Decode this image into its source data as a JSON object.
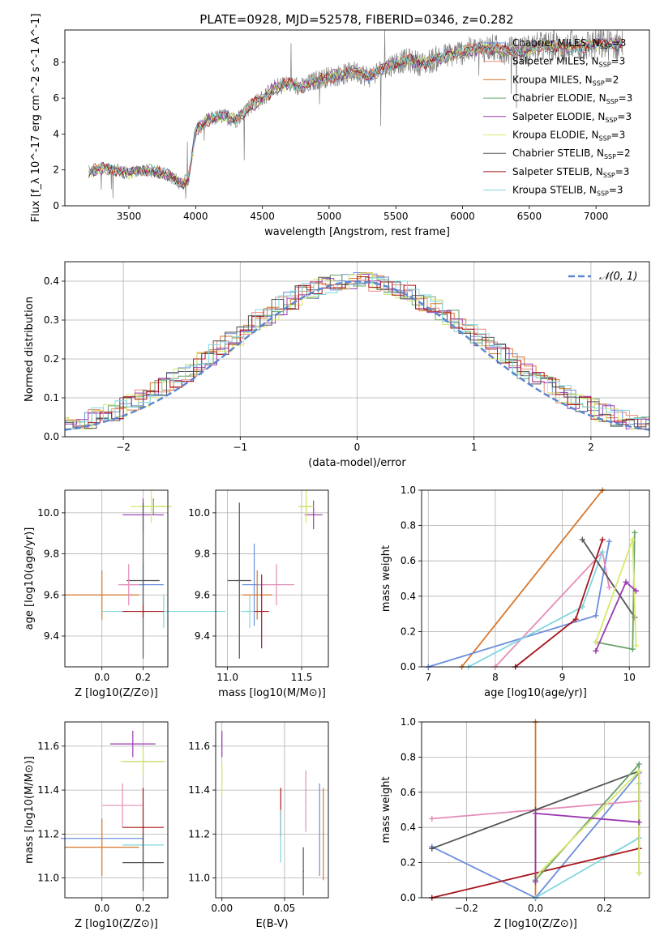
{
  "figure": {
    "title": "PLATE=0928, MJD=52578, FIBERID=0346, z=0.282"
  },
  "colors": {
    "Chabrier MILES": "#6b8fdc",
    "Salpeter MILES": "#e98a7a",
    "Kroupa MILES": "#d9762a",
    "Chabrier ELODIE": "#6aa36a",
    "Salpeter ELODIE": "#9a39b0",
    "Kroupa ELODIE": "#d9e86a",
    "Chabrier STELIB": "#555555",
    "Salpeter STELIB": "#a8161c",
    "Kroupa STELIB": "#7fd6e0",
    "data": "#808080",
    "pink": "#e58db8",
    "gauss": "#5b86d1"
  },
  "chart_data": [
    {
      "id": "spectrum",
      "type": "line",
      "xlabel": "wavelength [Angstrom, rest frame]",
      "ylabel": "Flux [f_λ 10^-17 erg cm^-2 s^-1 A^-1]",
      "xlim": [
        3020,
        7400
      ],
      "ylim": [
        0,
        9.8
      ],
      "xticks": [
        3500,
        4000,
        4500,
        5000,
        5500,
        6000,
        6500,
        7000
      ],
      "yticks": [
        0,
        2,
        4,
        6,
        8
      ],
      "legend_position": "top-right",
      "legend": [
        {
          "label": "Chabrier MILES, N",
          "sub": "SSP",
          "suffix": "=3",
          "key": "Chabrier MILES"
        },
        {
          "label": "Salpeter MILES, N",
          "sub": "SSP",
          "suffix": "=3",
          "key": "Salpeter MILES"
        },
        {
          "label": "Kroupa MILES, N",
          "sub": "SSP",
          "suffix": "=2",
          "key": "Kroupa MILES"
        },
        {
          "label": "Chabrier ELODIE, N",
          "sub": "SSP",
          "suffix": "=3",
          "key": "Chabrier ELODIE"
        },
        {
          "label": "Salpeter ELODIE, N",
          "sub": "SSP",
          "suffix": "=3",
          "key": "Salpeter ELODIE"
        },
        {
          "label": "Kroupa ELODIE, N",
          "sub": "SSP",
          "suffix": "=3",
          "key": "Kroupa ELODIE"
        },
        {
          "label": "Chabrier STELIB, N",
          "sub": "SSP",
          "suffix": "=2",
          "key": "Chabrier STELIB"
        },
        {
          "label": "Salpeter STELIB, N",
          "sub": "SSP",
          "suffix": "=3",
          "key": "Salpeter STELIB"
        },
        {
          "label": "Kroupa STELIB, N",
          "sub": "SSP",
          "suffix": "=3",
          "key": "Kroupa STELIB"
        }
      ],
      "model_continuum": {
        "x": [
          3200,
          3300,
          3400,
          3500,
          3600,
          3700,
          3800,
          3900,
          3950,
          4000,
          4100,
          4200,
          4300,
          4400,
          4500,
          4600,
          4700,
          4800,
          4900,
          5000,
          5100,
          5200,
          5300,
          5400,
          5500,
          5600,
          5700,
          5800,
          5900,
          6000,
          6200,
          6400,
          6600,
          6800,
          7000,
          7200
        ],
        "y": [
          1.9,
          2.1,
          2.0,
          1.8,
          2.0,
          1.9,
          1.7,
          1.2,
          1.6,
          4.2,
          4.8,
          5.0,
          4.8,
          5.5,
          6.0,
          6.6,
          6.8,
          6.6,
          7.0,
          7.2,
          7.3,
          7.5,
          7.2,
          7.6,
          8.0,
          8.1,
          7.9,
          8.2,
          8.4,
          8.6,
          8.8,
          8.6,
          8.9,
          8.8,
          9.0,
          9.0
        ]
      }
    },
    {
      "id": "residuals",
      "type": "step",
      "xlabel": "(data-model)/error",
      "ylabel": "Normed distribution",
      "xlim": [
        -2.5,
        2.5
      ],
      "ylim": [
        0,
        0.45
      ],
      "xticks": [
        -2,
        -1,
        0,
        1,
        2
      ],
      "yticks": [
        0.0,
        0.1,
        0.2,
        0.3,
        0.4
      ],
      "grid": true,
      "legend_position": "top-right",
      "gauss_label": "𝒩(0, 1)"
    },
    {
      "id": "age-vs-Z",
      "type": "errorbar",
      "xlabel": "Z [log10(Z/Z⊙)]",
      "ylabel": "age [log10(age/yr)]",
      "xlim": [
        -0.18,
        0.32
      ],
      "ylim": [
        9.25,
        10.11
      ],
      "xticks": [
        0.0,
        0.2
      ],
      "yticks": [
        9.4,
        9.6,
        9.8,
        10.0
      ],
      "grid": true,
      "points": [
        {
          "key": "Chabrier MILES",
          "x": 0.2,
          "y": 9.65,
          "xerr": 0.1,
          "yerr": 0.1
        },
        {
          "key": "Kroupa MILES",
          "x": 0.0,
          "y": 9.6,
          "xerr": 0.18,
          "yerr": 0.12
        },
        {
          "key": "Salpeter ELODIE",
          "x": 0.2,
          "y": 9.99,
          "xerr": 0.1,
          "yerr": 0.08
        },
        {
          "key": "Chabrier ELODIE",
          "x": 0.25,
          "y": 10.03,
          "xerr": 0.06,
          "yerr": 0.04
        },
        {
          "key": "Kroupa ELODIE",
          "x": 0.24,
          "y": 10.03,
          "xerr": 0.1,
          "yerr": 0.08
        },
        {
          "key": "Chabrier STELIB",
          "x": 0.2,
          "y": 9.67,
          "xerr": 0.08,
          "yerr": 0.38
        },
        {
          "key": "Kroupa STELIB",
          "x": 0.3,
          "y": 9.52,
          "xerr": 0.3,
          "yerr": 0.08
        },
        {
          "key": "pink",
          "x": 0.13,
          "y": 9.65,
          "xerr": 0.05,
          "yerr": 0.1
        },
        {
          "key": "Salpeter STELIB",
          "x": 0.2,
          "y": 9.52,
          "xerr": 0.1,
          "yerr": 0.03
        }
      ]
    },
    {
      "id": "age-vs-mass",
      "type": "errorbar",
      "xlabel": "mass [log10(M/M⊙)]",
      "ylabel": "",
      "xlim": [
        10.92,
        11.68
      ],
      "ylim": [
        9.25,
        10.11
      ],
      "xticks": [
        11.0,
        11.5
      ],
      "yticks": [
        9.4,
        9.6,
        9.8,
        10.0
      ],
      "grid": true,
      "points": [
        {
          "key": "Chabrier MILES",
          "x": 11.18,
          "y": 9.65,
          "xerr": 0.08,
          "yerr": 0.2
        },
        {
          "key": "Kroupa MILES",
          "x": 11.2,
          "y": 9.6,
          "xerr": 0.1,
          "yerr": 0.12
        },
        {
          "key": "Salpeter ELODIE",
          "x": 11.58,
          "y": 9.99,
          "xerr": 0.06,
          "yerr": 0.07
        },
        {
          "key": "Chabrier ELODIE",
          "x": 11.53,
          "y": 10.03,
          "xerr": 0.05,
          "yerr": 0.04
        },
        {
          "key": "Kroupa ELODIE",
          "x": 11.53,
          "y": 10.03,
          "xerr": 0.05,
          "yerr": 0.08
        },
        {
          "key": "Chabrier STELIB",
          "x": 11.08,
          "y": 9.67,
          "xerr": 0.08,
          "yerr": 0.38
        },
        {
          "key": "Kroupa STELIB",
          "x": 11.15,
          "y": 9.52,
          "xerr": 0.06,
          "yerr": 0.08
        },
        {
          "key": "pink",
          "x": 11.33,
          "y": 9.65,
          "xerr": 0.12,
          "yerr": 0.1
        },
        {
          "key": "Salpeter STELIB",
          "x": 11.23,
          "y": 9.52,
          "xerr": 0.05,
          "yerr": 0.18
        }
      ]
    },
    {
      "id": "weight-vs-age",
      "type": "line",
      "xlabel": "age [log10(age/yr)]",
      "ylabel": "mass weight",
      "xlim": [
        6.9,
        10.3
      ],
      "ylim": [
        0,
        1.0
      ],
      "xticks": [
        7,
        8,
        9,
        10
      ],
      "yticks": [
        0.0,
        0.2,
        0.4,
        0.6,
        0.8,
        1.0
      ],
      "grid": true,
      "series": [
        {
          "key": "Kroupa MILES",
          "x": [
            7.5,
            9.6
          ],
          "y": [
            0.0,
            1.0
          ]
        },
        {
          "key": "Chabrier MILES",
          "x": [
            7.0,
            9.5,
            9.7
          ],
          "y": [
            0.0,
            0.29,
            0.71
          ]
        },
        {
          "key": "pink",
          "x": [
            8.0,
            9.6,
            9.7
          ],
          "y": [
            0.0,
            0.65,
            0.45
          ]
        },
        {
          "key": "Kroupa STELIB",
          "x": [
            7.6,
            9.3,
            9.6
          ],
          "y": [
            0.0,
            0.34,
            0.65
          ]
        },
        {
          "key": "Salpeter STELIB",
          "x": [
            8.3,
            9.2,
            9.6
          ],
          "y": [
            0.0,
            0.27,
            0.72
          ]
        },
        {
          "key": "Chabrier STELIB",
          "x": [
            9.3,
            10.08
          ],
          "y": [
            0.72,
            0.28
          ]
        },
        {
          "key": "Chabrier ELODIE",
          "x": [
            9.5,
            10.05,
            10.08
          ],
          "y": [
            0.14,
            0.1,
            0.76
          ]
        },
        {
          "key": "Kroupa ELODIE",
          "x": [
            9.5,
            10.05,
            10.1
          ],
          "y": [
            0.14,
            0.72,
            0.12
          ]
        },
        {
          "key": "Salpeter ELODIE",
          "x": [
            9.5,
            9.95,
            10.1
          ],
          "y": [
            0.09,
            0.48,
            0.43
          ]
        }
      ]
    },
    {
      "id": "mass-vs-Z",
      "type": "errorbar",
      "xlabel": "Z [log10(Z/Z⊙)]",
      "ylabel": "mass [log10(M/M⊙)]",
      "xlim": [
        -0.18,
        0.32
      ],
      "ylim": [
        10.91,
        11.71
      ],
      "xticks": [
        0.0,
        0.2
      ],
      "yticks": [
        11.0,
        11.2,
        11.4,
        11.6
      ],
      "grid": true,
      "points": [
        {
          "key": "Salpeter ELODIE",
          "x": 0.15,
          "y": 11.61,
          "xerr": 0.11,
          "yerr": 0.06
        },
        {
          "key": "Chabrier ELODIE",
          "x": 0.2,
          "y": 11.53,
          "xerr": 0.1,
          "yerr": 0.06
        },
        {
          "key": "Kroupa ELODIE",
          "x": 0.2,
          "y": 11.53,
          "xerr": 0.11,
          "yerr": 0.06
        },
        {
          "key": "pink",
          "x": 0.1,
          "y": 11.33,
          "xerr": 0.1,
          "yerr": 0.1
        },
        {
          "key": "Kroupa STELIB",
          "x": 0.2,
          "y": 11.15,
          "xerr": 0.1,
          "yerr": 0.16
        },
        {
          "key": "Chabrier MILES",
          "x": 0.0,
          "y": 11.18,
          "xerr": 0.2,
          "yerr": 0.0
        },
        {
          "key": "Kroupa MILES",
          "x": 0.0,
          "y": 11.14,
          "xerr": 0.18,
          "yerr": 0.13
        },
        {
          "key": "Salpeter STELIB",
          "x": 0.2,
          "y": 11.23,
          "xerr": 0.1,
          "yerr": 0.18
        },
        {
          "key": "Chabrier STELIB",
          "x": 0.2,
          "y": 11.07,
          "xerr": 0.1,
          "yerr": 0.13
        }
      ]
    },
    {
      "id": "mass-vs-ebv",
      "type": "errorbar",
      "xlabel": "E(B-V)",
      "ylabel": "",
      "xlim": [
        -0.005,
        0.085
      ],
      "ylim": [
        10.91,
        11.71
      ],
      "xticks": [
        0.0,
        0.05
      ],
      "yticks": [
        11.0,
        11.2,
        11.4,
        11.6
      ],
      "grid": true,
      "points": [
        {
          "key": "Salpeter ELODIE",
          "x": 0.0,
          "y": 11.61,
          "xerr": 0,
          "yerr": 0.06
        },
        {
          "key": "Kroupa ELODIE",
          "x": 0.0,
          "y": 11.45,
          "xerr": 0,
          "yerr": 0.07
        },
        {
          "key": "Salpeter STELIB",
          "x": 0.047,
          "y": 11.3,
          "xerr": 0,
          "yerr": 0.11
        },
        {
          "key": "Kroupa STELIB",
          "x": 0.047,
          "y": 11.19,
          "xerr": 0,
          "yerr": 0.12
        },
        {
          "key": "pink",
          "x": 0.067,
          "y": 11.35,
          "xerr": 0,
          "yerr": 0.14
        },
        {
          "key": "Chabrier STELIB",
          "x": 0.065,
          "y": 11.03,
          "xerr": 0,
          "yerr": 0.11
        },
        {
          "key": "Chabrier MILES",
          "x": 0.078,
          "y": 11.22,
          "xerr": 0,
          "yerr": 0.21
        },
        {
          "key": "Kroupa MILES",
          "x": 0.081,
          "y": 11.2,
          "xerr": 0,
          "yerr": 0.21
        }
      ]
    },
    {
      "id": "weight-vs-Z",
      "type": "line",
      "xlabel": "Z [log10(Z/Z⊙)]",
      "ylabel": "mass weight",
      "xlim": [
        -0.33,
        0.33
      ],
      "ylim": [
        0,
        1.0
      ],
      "xticks": [
        -0.2,
        0.0,
        0.2
      ],
      "yticks": [
        0.0,
        0.2,
        0.4,
        0.6,
        0.8,
        1.0
      ],
      "grid": true,
      "series": [
        {
          "key": "Kroupa MILES",
          "x": [
            0.0,
            0.0
          ],
          "y": [
            0.0,
            1.0
          ]
        },
        {
          "key": "Chabrier MILES",
          "x": [
            -0.3,
            0.0,
            0.3
          ],
          "y": [
            0.29,
            0.0,
            0.71
          ]
        },
        {
          "key": "pink",
          "x": [
            -0.3,
            0.3
          ],
          "y": [
            0.45,
            0.55
          ]
        },
        {
          "key": "Kroupa STELIB",
          "x": [
            0.0,
            0.3,
            0.3
          ],
          "y": [
            0.0,
            0.34,
            0.65
          ]
        },
        {
          "key": "Salpeter STELIB",
          "x": [
            -0.3,
            0.3,
            0.3
          ],
          "y": [
            0.0,
            0.28,
            0.72
          ]
        },
        {
          "key": "Chabrier STELIB",
          "x": [
            -0.3,
            0.0,
            0.3
          ],
          "y": [
            0.28,
            0.5,
            0.72
          ]
        },
        {
          "key": "Chabrier ELODIE",
          "x": [
            0.0,
            0.3,
            0.3
          ],
          "y": [
            0.1,
            0.76,
            0.14
          ]
        },
        {
          "key": "Kroupa ELODIE",
          "x": [
            0.0,
            0.3,
            0.3
          ],
          "y": [
            0.12,
            0.72,
            0.14
          ]
        },
        {
          "key": "Salpeter ELODIE",
          "x": [
            0.0,
            0.0,
            0.3
          ],
          "y": [
            0.09,
            0.48,
            0.43
          ]
        }
      ]
    }
  ]
}
